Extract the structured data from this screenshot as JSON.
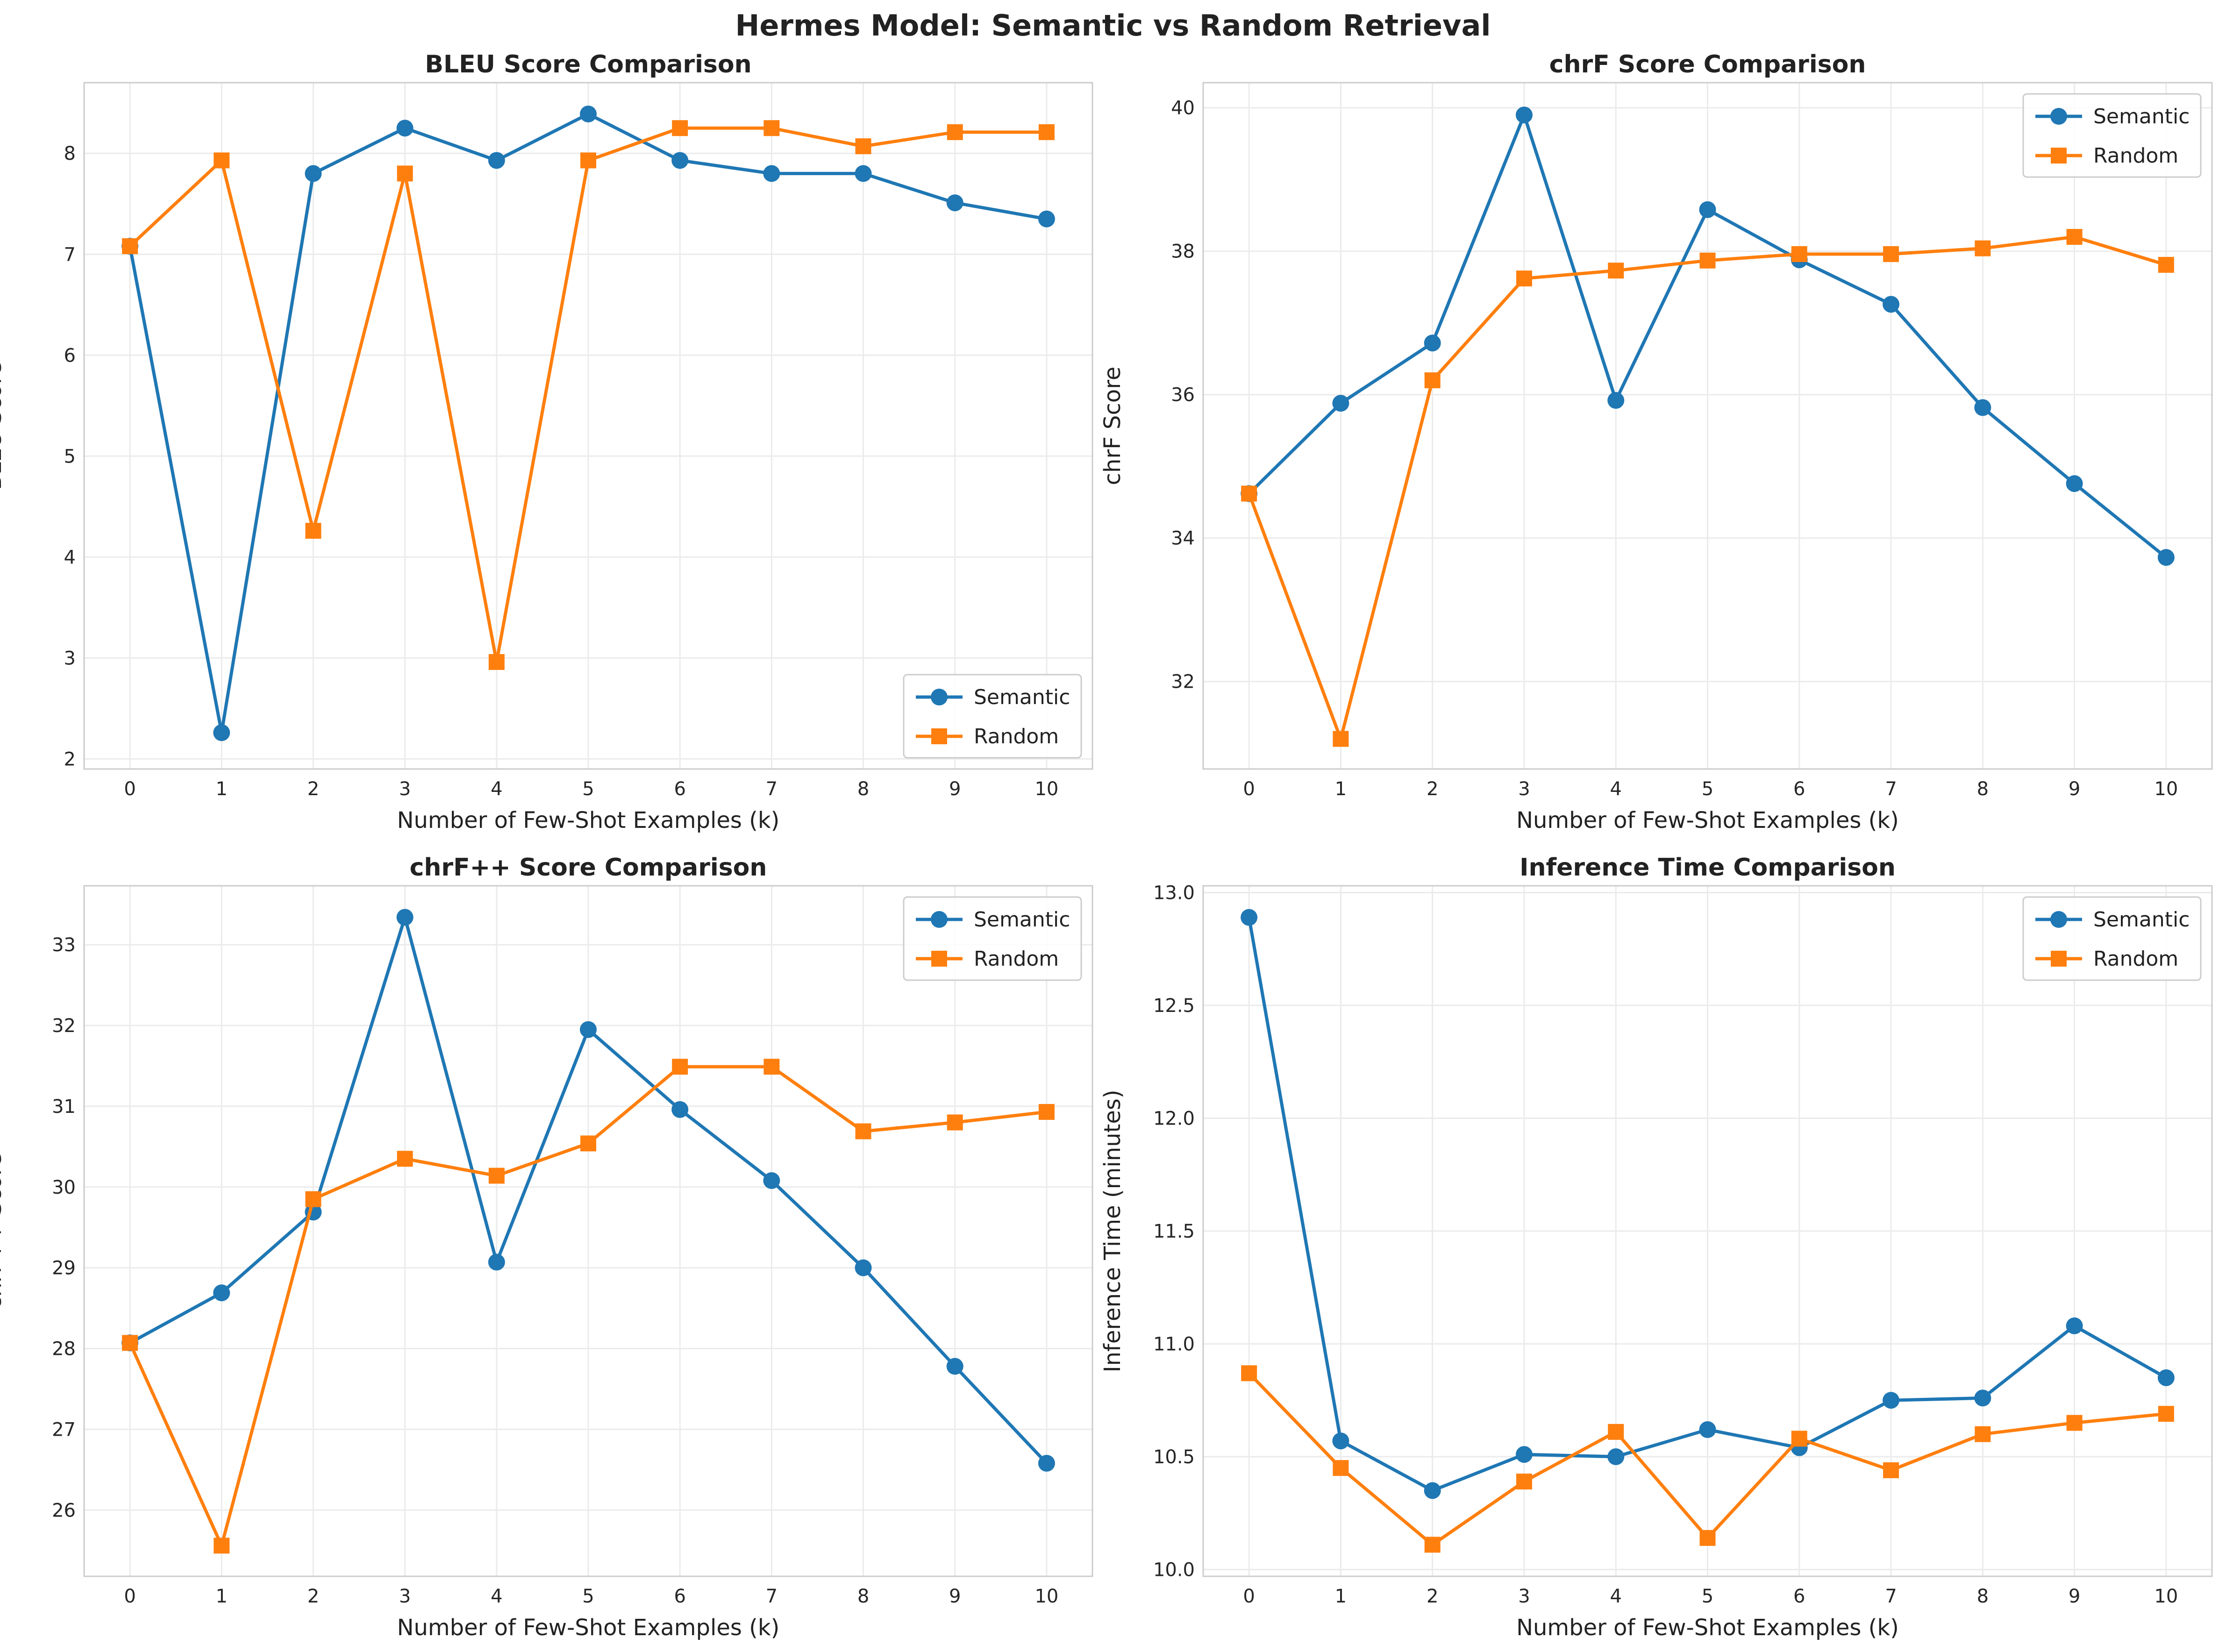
{
  "title": "Hermes Model: Semantic vs Random Retrieval",
  "colors": {
    "semantic": "#1f77b4",
    "random": "#ff7f0e",
    "grid": "#ebebeb",
    "frame": "#cccccc"
  },
  "chart_data": [
    {
      "type": "line",
      "title": "BLEU Score Comparison",
      "xlabel": "Number of Few-Shot Examples (k)",
      "ylabel": "BLEU Score",
      "x": [
        0,
        1,
        2,
        3,
        4,
        5,
        6,
        7,
        8,
        9,
        10
      ],
      "xlim": [
        -0.5,
        10.5
      ],
      "ylim": [
        1.9,
        8.7
      ],
      "yticks": [
        2,
        3,
        4,
        5,
        6,
        7,
        8
      ],
      "ytick_labels": [
        "2",
        "3",
        "4",
        "5",
        "6",
        "7",
        "8"
      ],
      "legend_loc": "lower-right",
      "grid": true,
      "series": [
        {
          "name": "Semantic",
          "marker": "circle",
          "values": [
            7.08,
            2.26,
            7.8,
            8.25,
            7.93,
            8.39,
            7.93,
            7.8,
            7.8,
            7.51,
            7.35
          ]
        },
        {
          "name": "Random",
          "marker": "square",
          "values": [
            7.08,
            7.93,
            4.26,
            7.8,
            2.96,
            7.93,
            8.25,
            8.25,
            8.07,
            8.21,
            8.21
          ]
        }
      ]
    },
    {
      "type": "line",
      "title": "chrF Score Comparison",
      "xlabel": "Number of Few-Shot Examples (k)",
      "ylabel": "chrF Score",
      "x": [
        0,
        1,
        2,
        3,
        4,
        5,
        6,
        7,
        8,
        9,
        10
      ],
      "xlim": [
        -0.5,
        10.5
      ],
      "ylim": [
        30.78,
        40.35
      ],
      "yticks": [
        32,
        34,
        36,
        38,
        40
      ],
      "ytick_labels": [
        "32",
        "34",
        "36",
        "38",
        "40"
      ],
      "legend_loc": "upper-right",
      "grid": true,
      "series": [
        {
          "name": "Semantic",
          "marker": "circle",
          "values": [
            34.62,
            35.88,
            36.72,
            39.9,
            35.92,
            38.58,
            37.88,
            37.26,
            35.82,
            34.76,
            33.73
          ]
        },
        {
          "name": "Random",
          "marker": "square",
          "values": [
            34.62,
            31.2,
            36.2,
            37.62,
            37.73,
            37.87,
            37.96,
            37.96,
            38.04,
            38.2,
            37.81
          ]
        }
      ]
    },
    {
      "type": "line",
      "title": "chrF++ Score Comparison",
      "xlabel": "Number of Few-Shot Examples (k)",
      "ylabel": "chrF++ Score",
      "x": [
        0,
        1,
        2,
        3,
        4,
        5,
        6,
        7,
        8,
        9,
        10
      ],
      "xlim": [
        -0.5,
        10.5
      ],
      "ylim": [
        25.18,
        33.73
      ],
      "yticks": [
        26,
        27,
        28,
        29,
        30,
        31,
        32,
        33
      ],
      "ytick_labels": [
        "26",
        "27",
        "28",
        "29",
        "30",
        "31",
        "32",
        "33"
      ],
      "legend_loc": "upper-right",
      "grid": true,
      "series": [
        {
          "name": "Semantic",
          "marker": "circle",
          "values": [
            28.07,
            28.69,
            29.69,
            33.34,
            29.07,
            31.95,
            30.96,
            30.08,
            29.0,
            27.78,
            26.58
          ]
        },
        {
          "name": "Random",
          "marker": "square",
          "values": [
            28.07,
            25.56,
            29.85,
            30.35,
            30.14,
            30.54,
            31.49,
            31.49,
            30.69,
            30.8,
            30.93
          ]
        }
      ]
    },
    {
      "type": "line",
      "title": "Inference Time Comparison",
      "xlabel": "Number of Few-Shot Examples (k)",
      "ylabel": "Inference Time (minutes)",
      "x": [
        0,
        1,
        2,
        3,
        4,
        5,
        6,
        7,
        8,
        9,
        10
      ],
      "xlim": [
        -0.5,
        10.5
      ],
      "ylim": [
        9.97,
        13.03
      ],
      "yticks": [
        10.0,
        10.5,
        11.0,
        11.5,
        12.0,
        12.5,
        13.0
      ],
      "ytick_labels": [
        "10.0",
        "10.5",
        "11.0",
        "11.5",
        "12.0",
        "12.5",
        "13.0"
      ],
      "legend_loc": "upper-right",
      "grid": true,
      "series": [
        {
          "name": "Semantic",
          "marker": "circle",
          "values": [
            12.89,
            10.57,
            10.35,
            10.51,
            10.5,
            10.62,
            10.54,
            10.75,
            10.76,
            11.08,
            10.85
          ]
        },
        {
          "name": "Random",
          "marker": "square",
          "values": [
            10.87,
            10.45,
            10.11,
            10.39,
            10.61,
            10.14,
            10.58,
            10.44,
            10.6,
            10.65,
            10.69
          ]
        }
      ]
    }
  ]
}
